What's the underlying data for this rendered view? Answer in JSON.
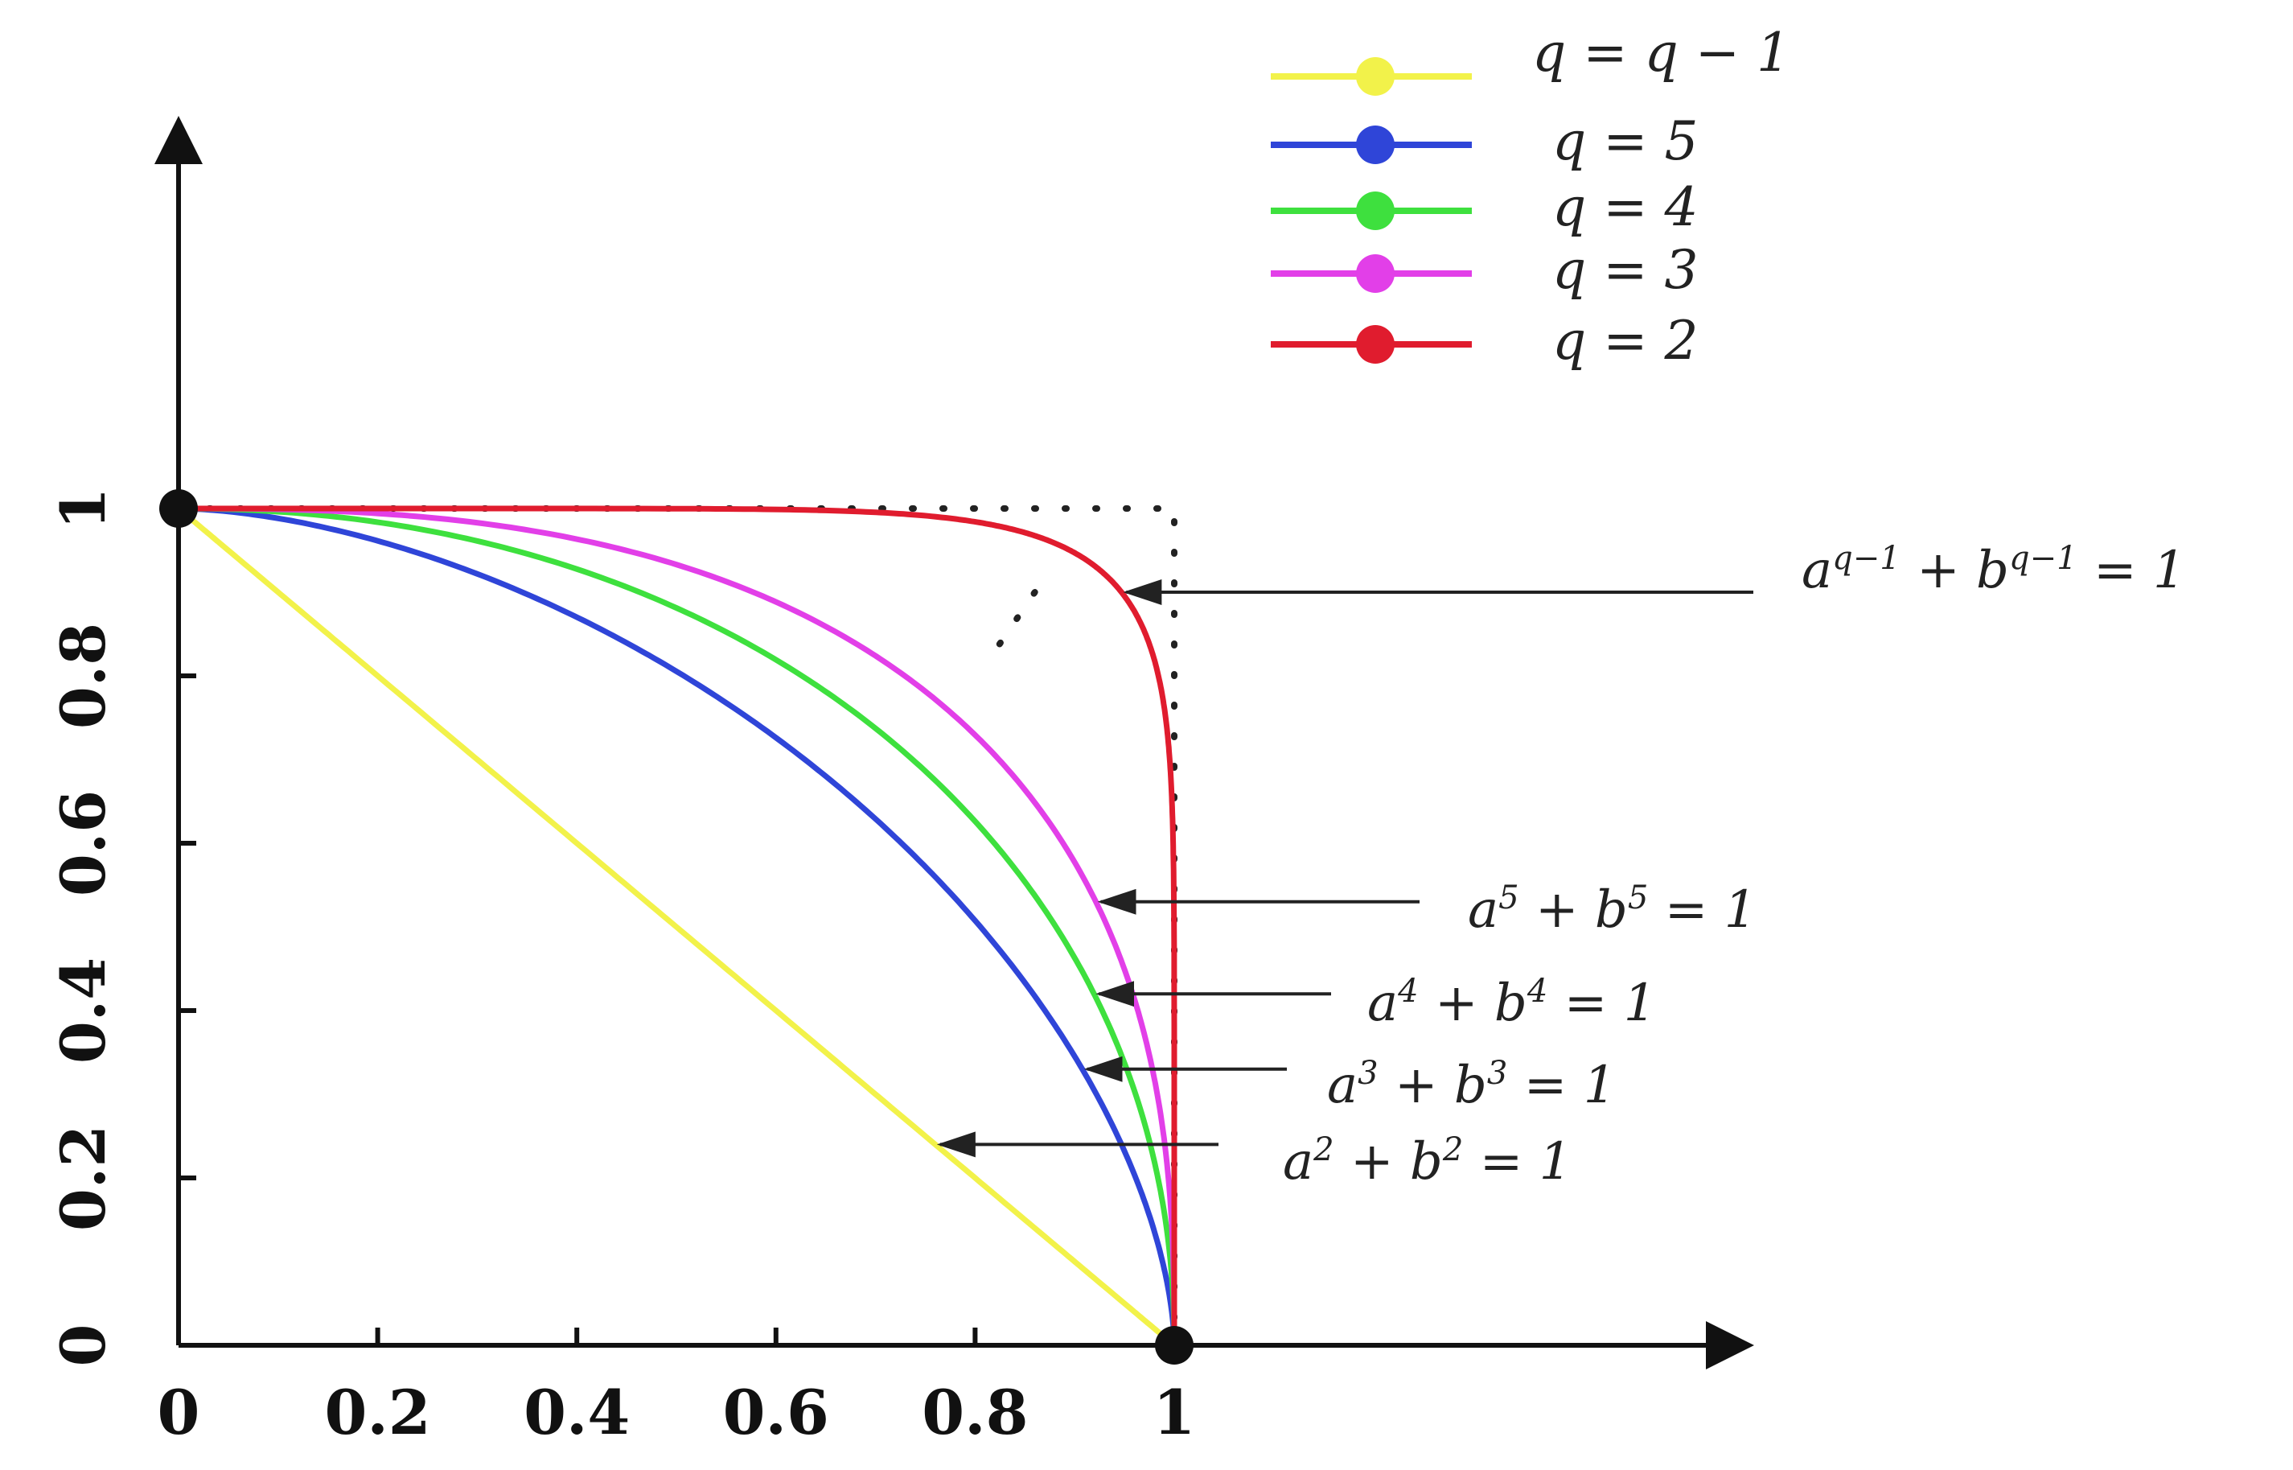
{
  "chart_data": {
    "type": "line",
    "title": "",
    "xlabel": "",
    "ylabel": "",
    "xlim": [
      0,
      1
    ],
    "ylim": [
      0,
      1
    ],
    "x_ticks": [
      "0",
      "0.2",
      "0.4",
      "0.6",
      "0.8",
      "1"
    ],
    "y_ticks": [
      "0",
      "0.2",
      "0.4",
      "0.6",
      "0.8",
      "1"
    ],
    "grid": false,
    "legend_position": "top-right",
    "series": [
      {
        "name": "q = q − 1",
        "exponent": 1,
        "color": "#f2f24a"
      },
      {
        "name": "q = 5",
        "exponent": 1.7,
        "color": "#2f45d8"
      },
      {
        "name": "q = 4",
        "exponent": 2.1,
        "color": "#3ee03e"
      },
      {
        "name": "q = 3",
        "exponent": 2.6,
        "color": "#e23fe8"
      },
      {
        "name": "q = 2",
        "exponent": 9,
        "color": "#e01c2e"
      }
    ],
    "reference_box": {
      "x": [
        0,
        1
      ],
      "y": [
        0,
        1
      ],
      "style": "dotted"
    },
    "endpoints": [
      {
        "x": 0,
        "y": 1
      },
      {
        "x": 1,
        "y": 0
      }
    ],
    "annotations": [
      {
        "parts": [
          {
            "t": "a"
          },
          {
            "t": "q−1",
            "sup": true
          },
          {
            "t": " + b"
          },
          {
            "t": "q−1",
            "sup": true
          },
          {
            "t": " = 1"
          }
        ],
        "target_series": 4,
        "target_y": 0.9
      },
      {
        "parts": [
          {
            "t": "a"
          },
          {
            "t": "5",
            "sup": true
          },
          {
            "t": " + b"
          },
          {
            "t": "5",
            "sup": true
          },
          {
            "t": " = 1"
          }
        ],
        "target_series": 3,
        "target_y": 0.53
      },
      {
        "parts": [
          {
            "t": "a"
          },
          {
            "t": "4",
            "sup": true
          },
          {
            "t": " + b"
          },
          {
            "t": "4",
            "sup": true
          },
          {
            "t": " = 1"
          }
        ],
        "target_series": 2,
        "target_y": 0.42
      },
      {
        "parts": [
          {
            "t": "a"
          },
          {
            "t": "3",
            "sup": true
          },
          {
            "t": " + b"
          },
          {
            "t": "3",
            "sup": true
          },
          {
            "t": " = 1"
          }
        ],
        "target_series": 1,
        "target_y": 0.33
      },
      {
        "parts": [
          {
            "t": "a"
          },
          {
            "t": "2",
            "sup": true
          },
          {
            "t": " + b"
          },
          {
            "t": "2",
            "sup": true
          },
          {
            "t": " = 1"
          }
        ],
        "target_series": 0,
        "target_y": 0.24
      }
    ]
  }
}
